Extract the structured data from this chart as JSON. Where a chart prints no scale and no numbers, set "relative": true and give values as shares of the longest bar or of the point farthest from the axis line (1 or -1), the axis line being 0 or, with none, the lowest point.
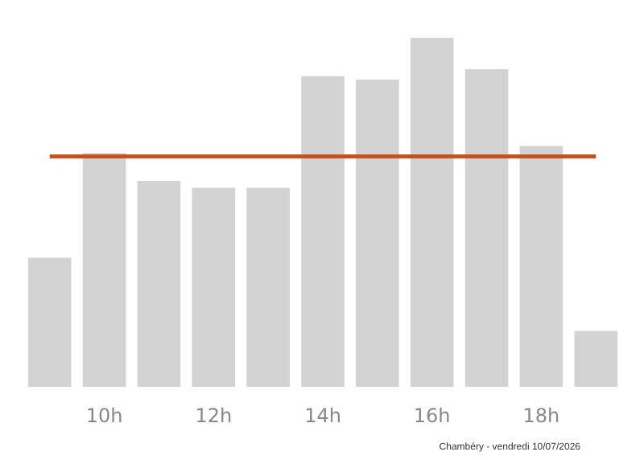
{
  "chart_data": {
    "type": "bar",
    "relative": true,
    "categories": [
      null,
      "10h",
      null,
      "12h",
      null,
      "14h",
      null,
      "16h",
      null,
      "18h",
      null
    ],
    "values": [
      0.37,
      0.67,
      0.59,
      0.57,
      0.57,
      0.89,
      0.88,
      1,
      0.91,
      0.69,
      0.16
    ],
    "color": "#d3d3d3",
    "ref_lines": [
      {
        "axis": "y",
        "value": 0.66,
        "label": null,
        "color": "#c8501e"
      }
    ],
    "annotations": [
      "Chambéry - vendredi 10/07/2026"
    ],
    "grid": false
  }
}
